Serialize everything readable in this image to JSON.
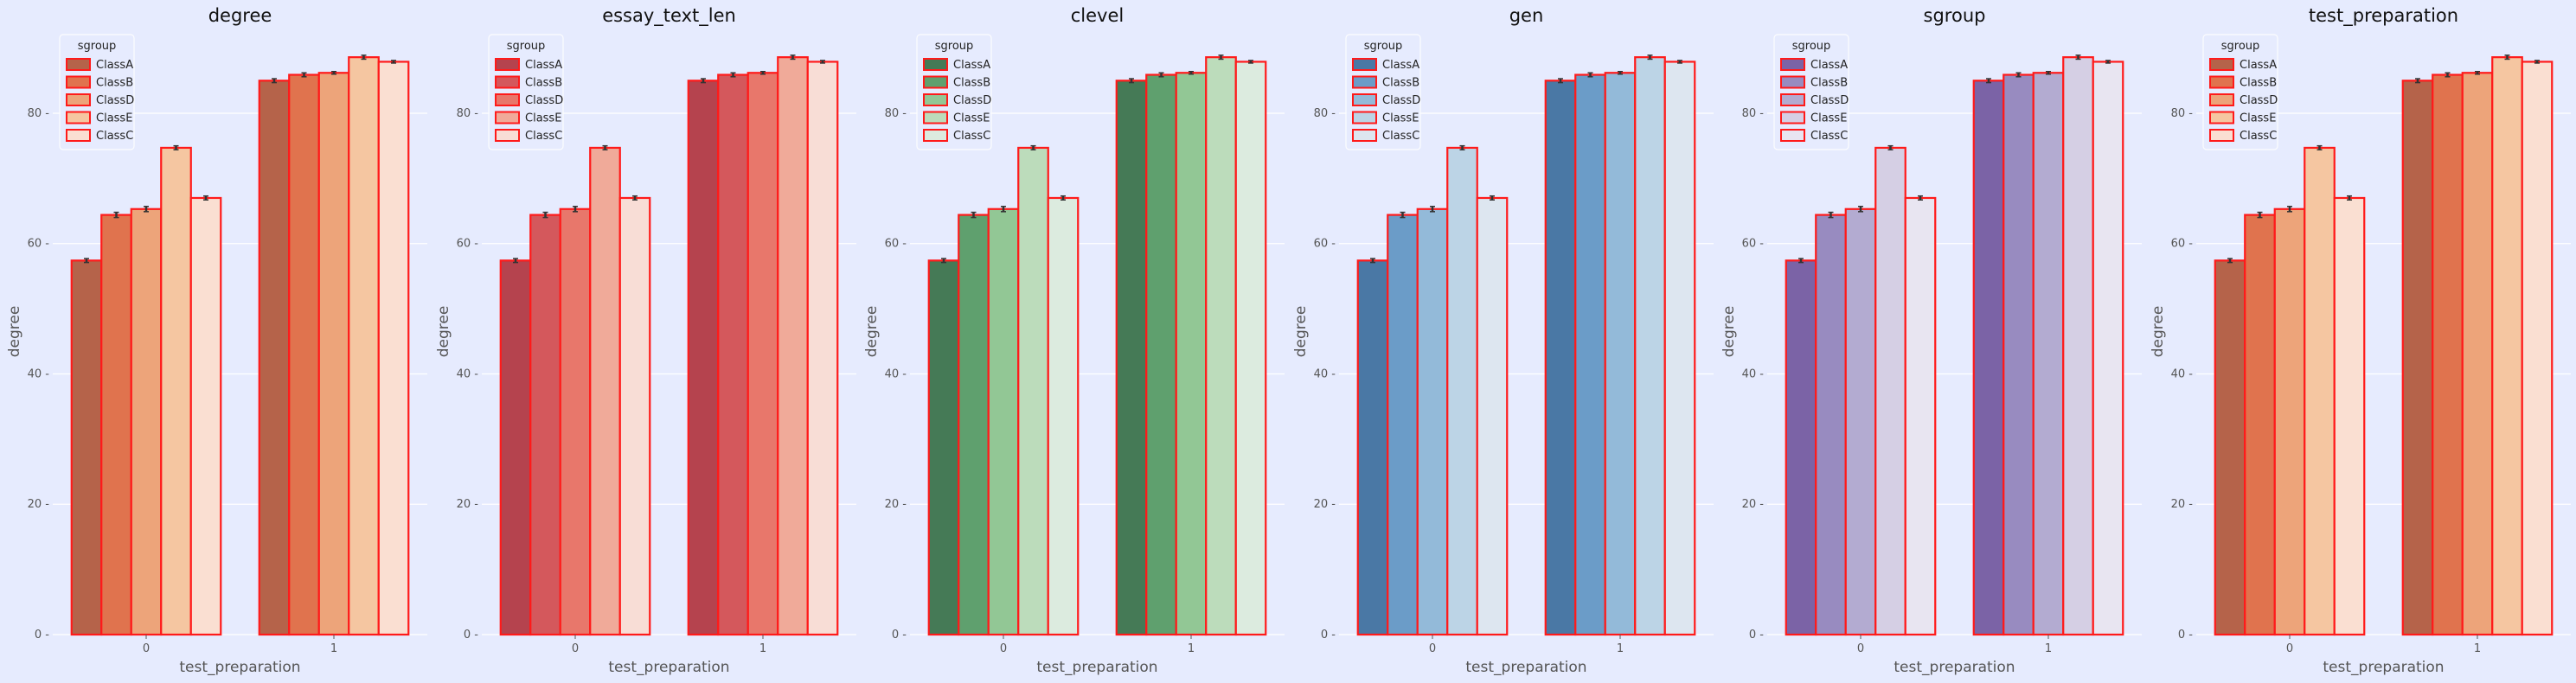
{
  "figure": {
    "background": "#e6ebfe",
    "panel_background": "#e6ebfe",
    "grid_color": "#ffffff"
  },
  "chart_data": [
    {
      "type": "bar",
      "title": "degree",
      "xlabel": "test_preparation",
      "ylabel": "degree",
      "categories": [
        "0",
        "1"
      ],
      "ylim": [
        0,
        93
      ],
      "yticks": [
        0,
        20,
        40,
        60,
        80
      ],
      "grid": true,
      "legend": {
        "title": "sgroup",
        "placement": "top-left"
      },
      "bar_edge_color": "#ff1a1a",
      "series": [
        {
          "name": "ClassA",
          "color": "#b5634a",
          "values": [
            57.4,
            85.0
          ],
          "errors": [
            0.3,
            0.3
          ]
        },
        {
          "name": "ClassB",
          "color": "#e0734e",
          "values": [
            64.4,
            85.9
          ],
          "errors": [
            0.4,
            0.3
          ]
        },
        {
          "name": "ClassD",
          "color": "#eda47a",
          "values": [
            65.3,
            86.2
          ],
          "errors": [
            0.4,
            0.2
          ]
        },
        {
          "name": "ClassE",
          "color": "#f5c6a1",
          "values": [
            74.7,
            88.6
          ],
          "errors": [
            0.3,
            0.3
          ]
        },
        {
          "name": "ClassC",
          "color": "#fadfd2",
          "values": [
            67.0,
            87.9
          ],
          "errors": [
            0.3,
            0.2
          ]
        }
      ]
    },
    {
      "type": "bar",
      "title": "essay_text_len",
      "xlabel": "test_preparation",
      "ylabel": "degree",
      "categories": [
        "0",
        "1"
      ],
      "ylim": [
        0,
        93
      ],
      "yticks": [
        0,
        20,
        40,
        60,
        80
      ],
      "grid": true,
      "legend": {
        "title": "sgroup",
        "placement": "top-left"
      },
      "bar_edge_color": "#ff1a1a",
      "series": [
        {
          "name": "ClassA",
          "color": "#b5434e",
          "values": [
            57.4,
            85.0
          ],
          "errors": [
            0.3,
            0.3
          ]
        },
        {
          "name": "ClassB",
          "color": "#d4585c",
          "values": [
            64.4,
            85.9
          ],
          "errors": [
            0.4,
            0.3
          ]
        },
        {
          "name": "ClassD",
          "color": "#e8776b",
          "values": [
            65.3,
            86.2
          ],
          "errors": [
            0.4,
            0.2
          ]
        },
        {
          "name": "ClassE",
          "color": "#f0aa99",
          "values": [
            74.7,
            88.6
          ],
          "errors": [
            0.3,
            0.3
          ]
        },
        {
          "name": "ClassC",
          "color": "#f8ddd6",
          "values": [
            67.0,
            87.9
          ],
          "errors": [
            0.3,
            0.2
          ]
        }
      ]
    },
    {
      "type": "bar",
      "title": "clevel",
      "xlabel": "test_preparation",
      "ylabel": "degree",
      "categories": [
        "0",
        "1"
      ],
      "ylim": [
        0,
        93
      ],
      "yticks": [
        0,
        20,
        40,
        60,
        80
      ],
      "grid": true,
      "legend": {
        "title": "sgroup",
        "placement": "top-left"
      },
      "bar_edge_color": "#ff1a1a",
      "series": [
        {
          "name": "ClassA",
          "color": "#457a56",
          "values": [
            57.4,
            85.0
          ],
          "errors": [
            0.3,
            0.3
          ]
        },
        {
          "name": "ClassB",
          "color": "#5fa06e",
          "values": [
            64.4,
            85.9
          ],
          "errors": [
            0.4,
            0.3
          ]
        },
        {
          "name": "ClassD",
          "color": "#92c795",
          "values": [
            65.3,
            86.2
          ],
          "errors": [
            0.4,
            0.2
          ]
        },
        {
          "name": "ClassE",
          "color": "#bcdcbb",
          "values": [
            74.7,
            88.6
          ],
          "errors": [
            0.3,
            0.3
          ]
        },
        {
          "name": "ClassC",
          "color": "#dcebdf",
          "values": [
            67.0,
            87.9
          ],
          "errors": [
            0.3,
            0.2
          ]
        }
      ]
    },
    {
      "type": "bar",
      "title": "gen",
      "xlabel": "test_preparation",
      "ylabel": "degree",
      "categories": [
        "0",
        "1"
      ],
      "ylim": [
        0,
        93
      ],
      "yticks": [
        0,
        20,
        40,
        60,
        80
      ],
      "grid": true,
      "legend": {
        "title": "sgroup",
        "placement": "top-left"
      },
      "bar_edge_color": "#ff1a1a",
      "series": [
        {
          "name": "ClassA",
          "color": "#4a78a5",
          "values": [
            57.4,
            85.0
          ],
          "errors": [
            0.3,
            0.3
          ]
        },
        {
          "name": "ClassB",
          "color": "#6b9cc8",
          "values": [
            64.4,
            85.9
          ],
          "errors": [
            0.4,
            0.3
          ]
        },
        {
          "name": "ClassD",
          "color": "#93bad9",
          "values": [
            65.3,
            86.2
          ],
          "errors": [
            0.4,
            0.2
          ]
        },
        {
          "name": "ClassE",
          "color": "#bcd4e6",
          "values": [
            74.7,
            88.6
          ],
          "errors": [
            0.3,
            0.3
          ]
        },
        {
          "name": "ClassC",
          "color": "#dde6f0",
          "values": [
            67.0,
            87.9
          ],
          "errors": [
            0.3,
            0.2
          ]
        }
      ]
    },
    {
      "type": "bar",
      "title": "sgroup",
      "xlabel": "test_preparation",
      "ylabel": "degree",
      "categories": [
        "0",
        "1"
      ],
      "ylim": [
        0,
        93
      ],
      "yticks": [
        0,
        20,
        40,
        60,
        80
      ],
      "grid": true,
      "legend": {
        "title": "sgroup",
        "placement": "top-left"
      },
      "bar_edge_color": "#ff1a1a",
      "series": [
        {
          "name": "ClassA",
          "color": "#7b63a6",
          "values": [
            57.4,
            85.0
          ],
          "errors": [
            0.3,
            0.3
          ]
        },
        {
          "name": "ClassB",
          "color": "#988bc0",
          "values": [
            64.4,
            85.9
          ],
          "errors": [
            0.4,
            0.3
          ]
        },
        {
          "name": "ClassD",
          "color": "#b3abd1",
          "values": [
            65.3,
            86.2
          ],
          "errors": [
            0.4,
            0.2
          ]
        },
        {
          "name": "ClassE",
          "color": "#d5cfe4",
          "values": [
            74.7,
            88.6
          ],
          "errors": [
            0.3,
            0.3
          ]
        },
        {
          "name": "ClassC",
          "color": "#e8e5f1",
          "values": [
            67.0,
            87.9
          ],
          "errors": [
            0.3,
            0.2
          ]
        }
      ]
    },
    {
      "type": "bar",
      "title": "test_preparation",
      "xlabel": "test_preparation",
      "ylabel": "degree",
      "categories": [
        "0",
        "1"
      ],
      "ylim": [
        0,
        93
      ],
      "yticks": [
        0,
        20,
        40,
        60,
        80
      ],
      "grid": true,
      "legend": {
        "title": "sgroup",
        "placement": "top-left"
      },
      "bar_edge_color": "#ff1a1a",
      "series": [
        {
          "name": "ClassA",
          "color": "#b5634a",
          "values": [
            57.4,
            85.0
          ],
          "errors": [
            0.3,
            0.3
          ]
        },
        {
          "name": "ClassB",
          "color": "#e0734e",
          "values": [
            64.4,
            85.9
          ],
          "errors": [
            0.4,
            0.3
          ]
        },
        {
          "name": "ClassD",
          "color": "#eda47a",
          "values": [
            65.3,
            86.2
          ],
          "errors": [
            0.4,
            0.2
          ]
        },
        {
          "name": "ClassE",
          "color": "#f5c6a1",
          "values": [
            74.7,
            88.6
          ],
          "errors": [
            0.3,
            0.3
          ]
        },
        {
          "name": "ClassC",
          "color": "#fadfd2",
          "values": [
            67.0,
            87.9
          ],
          "errors": [
            0.3,
            0.2
          ]
        }
      ]
    }
  ]
}
